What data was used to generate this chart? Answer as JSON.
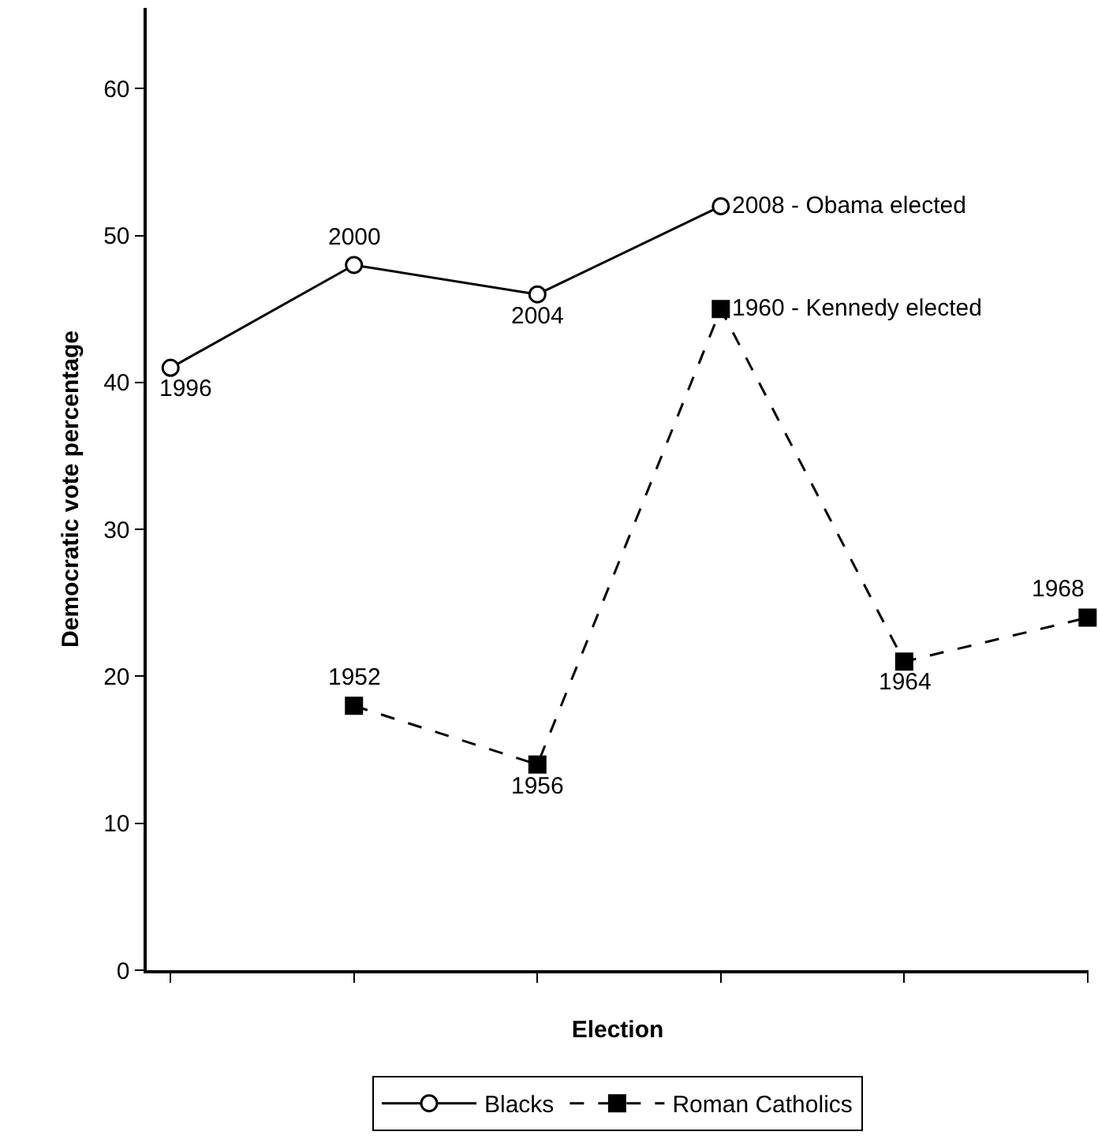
{
  "chart_data": {
    "type": "line",
    "xlabel": "Election",
    "ylabel": "Democratic vote percentage",
    "categories": [
      null,
      null,
      null,
      null,
      null,
      null
    ],
    "series": [
      {
        "name": "Blacks",
        "color": "#000000",
        "marker": "circle",
        "line_style": "solid",
        "values": [
          41,
          48,
          46,
          52,
          null,
          null
        ]
      },
      {
        "name": "Roman Catholics",
        "color": "#000000",
        "marker": "square",
        "line_style": "dashed",
        "values": [
          null,
          18,
          14,
          45,
          21,
          24
        ]
      }
    ],
    "annotations": [
      {
        "text": "1996",
        "y": 41
      },
      {
        "text": "2000",
        "y": 48
      },
      {
        "text": "2004",
        "y": 46
      },
      "2008 - Obama elected",
      {
        "text": "1952",
        "y": 18
      },
      {
        "text": "1956",
        "y": 14
      },
      "1960 - Kennedy elected",
      {
        "text": "1964",
        "y": 21
      },
      {
        "text": "1968",
        "y": 24
      }
    ],
    "ylim": [
      0,
      65.5
    ],
    "yticks": [
      0,
      10,
      20,
      30,
      40,
      50,
      60
    ],
    "tick_labels": "y",
    "legend": "bottom"
  }
}
